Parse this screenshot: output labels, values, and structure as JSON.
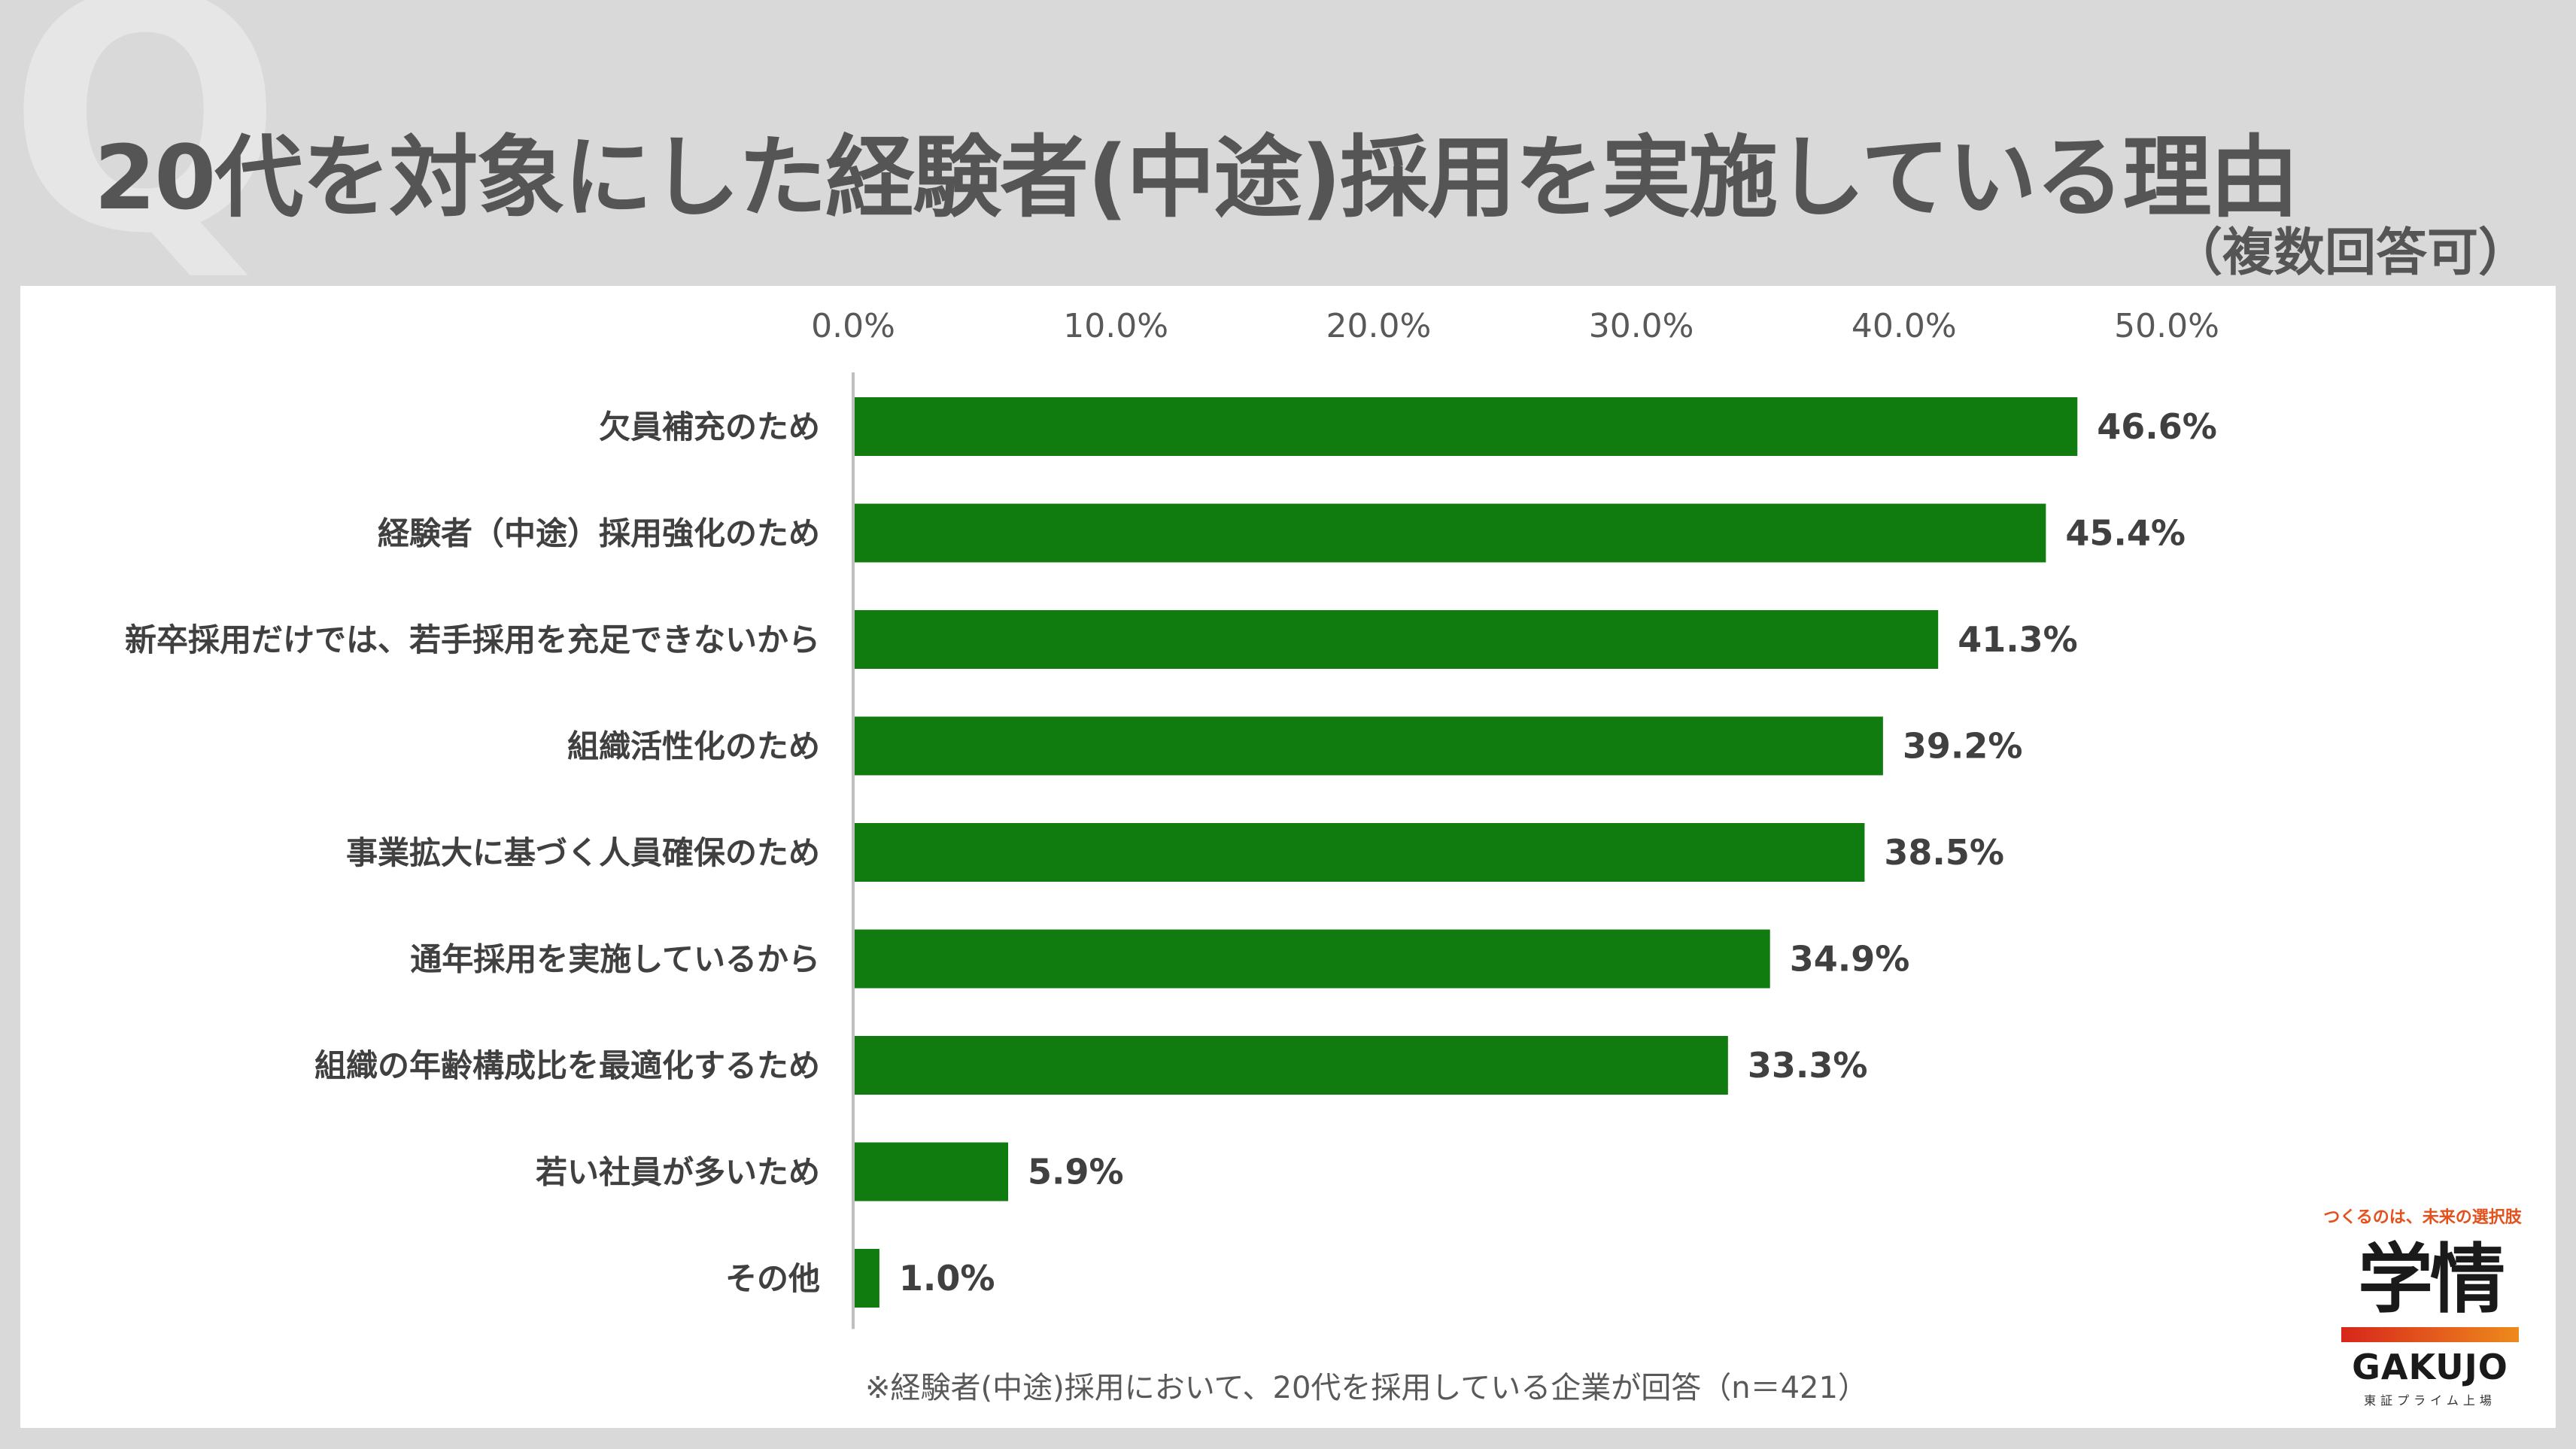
{
  "question_mark": "Q",
  "header": {
    "title": "20代を対象にした経験者(中途)採用を実施している理由",
    "subtitle": "（複数回答可）"
  },
  "chart_data": {
    "type": "bar",
    "orientation": "horizontal",
    "title": "20代を対象にした経験者(中途)採用を実施している理由",
    "xlim": [
      0,
      50
    ],
    "ticks": [
      "0.0%",
      "10.0%",
      "20.0%",
      "30.0%",
      "40.0%",
      "50.0%"
    ],
    "tick_values": [
      0,
      10,
      20,
      30,
      40,
      50
    ],
    "categories": [
      "欠員補充のため",
      "経験者（中途）採用強化のため",
      "新卒採用だけでは、若手採用を充足できないから",
      "組織活性化のため",
      "事業拡大に基づく人員確保のため",
      "通年採用を実施しているから",
      "組織の年齢構成比を最適化するため",
      "若い社員が多いため",
      "その他"
    ],
    "values": [
      46.6,
      45.4,
      41.3,
      39.2,
      38.5,
      34.9,
      33.3,
      5.9,
      1.0
    ],
    "value_labels": [
      "46.6%",
      "45.4%",
      "41.3%",
      "39.2%",
      "38.5%",
      "34.9%",
      "33.3%",
      "5.9%",
      "1.0%"
    ],
    "bar_color": "#107c10",
    "grid": false
  },
  "footnote": "※経験者(中途)採用において、20代を採用している企業が回答（n＝421）",
  "logo": {
    "tagline": "つくるのは、未来の選択肢",
    "mark": "学情",
    "name": "GAKUJO",
    "listed": "東証プライム上場"
  }
}
